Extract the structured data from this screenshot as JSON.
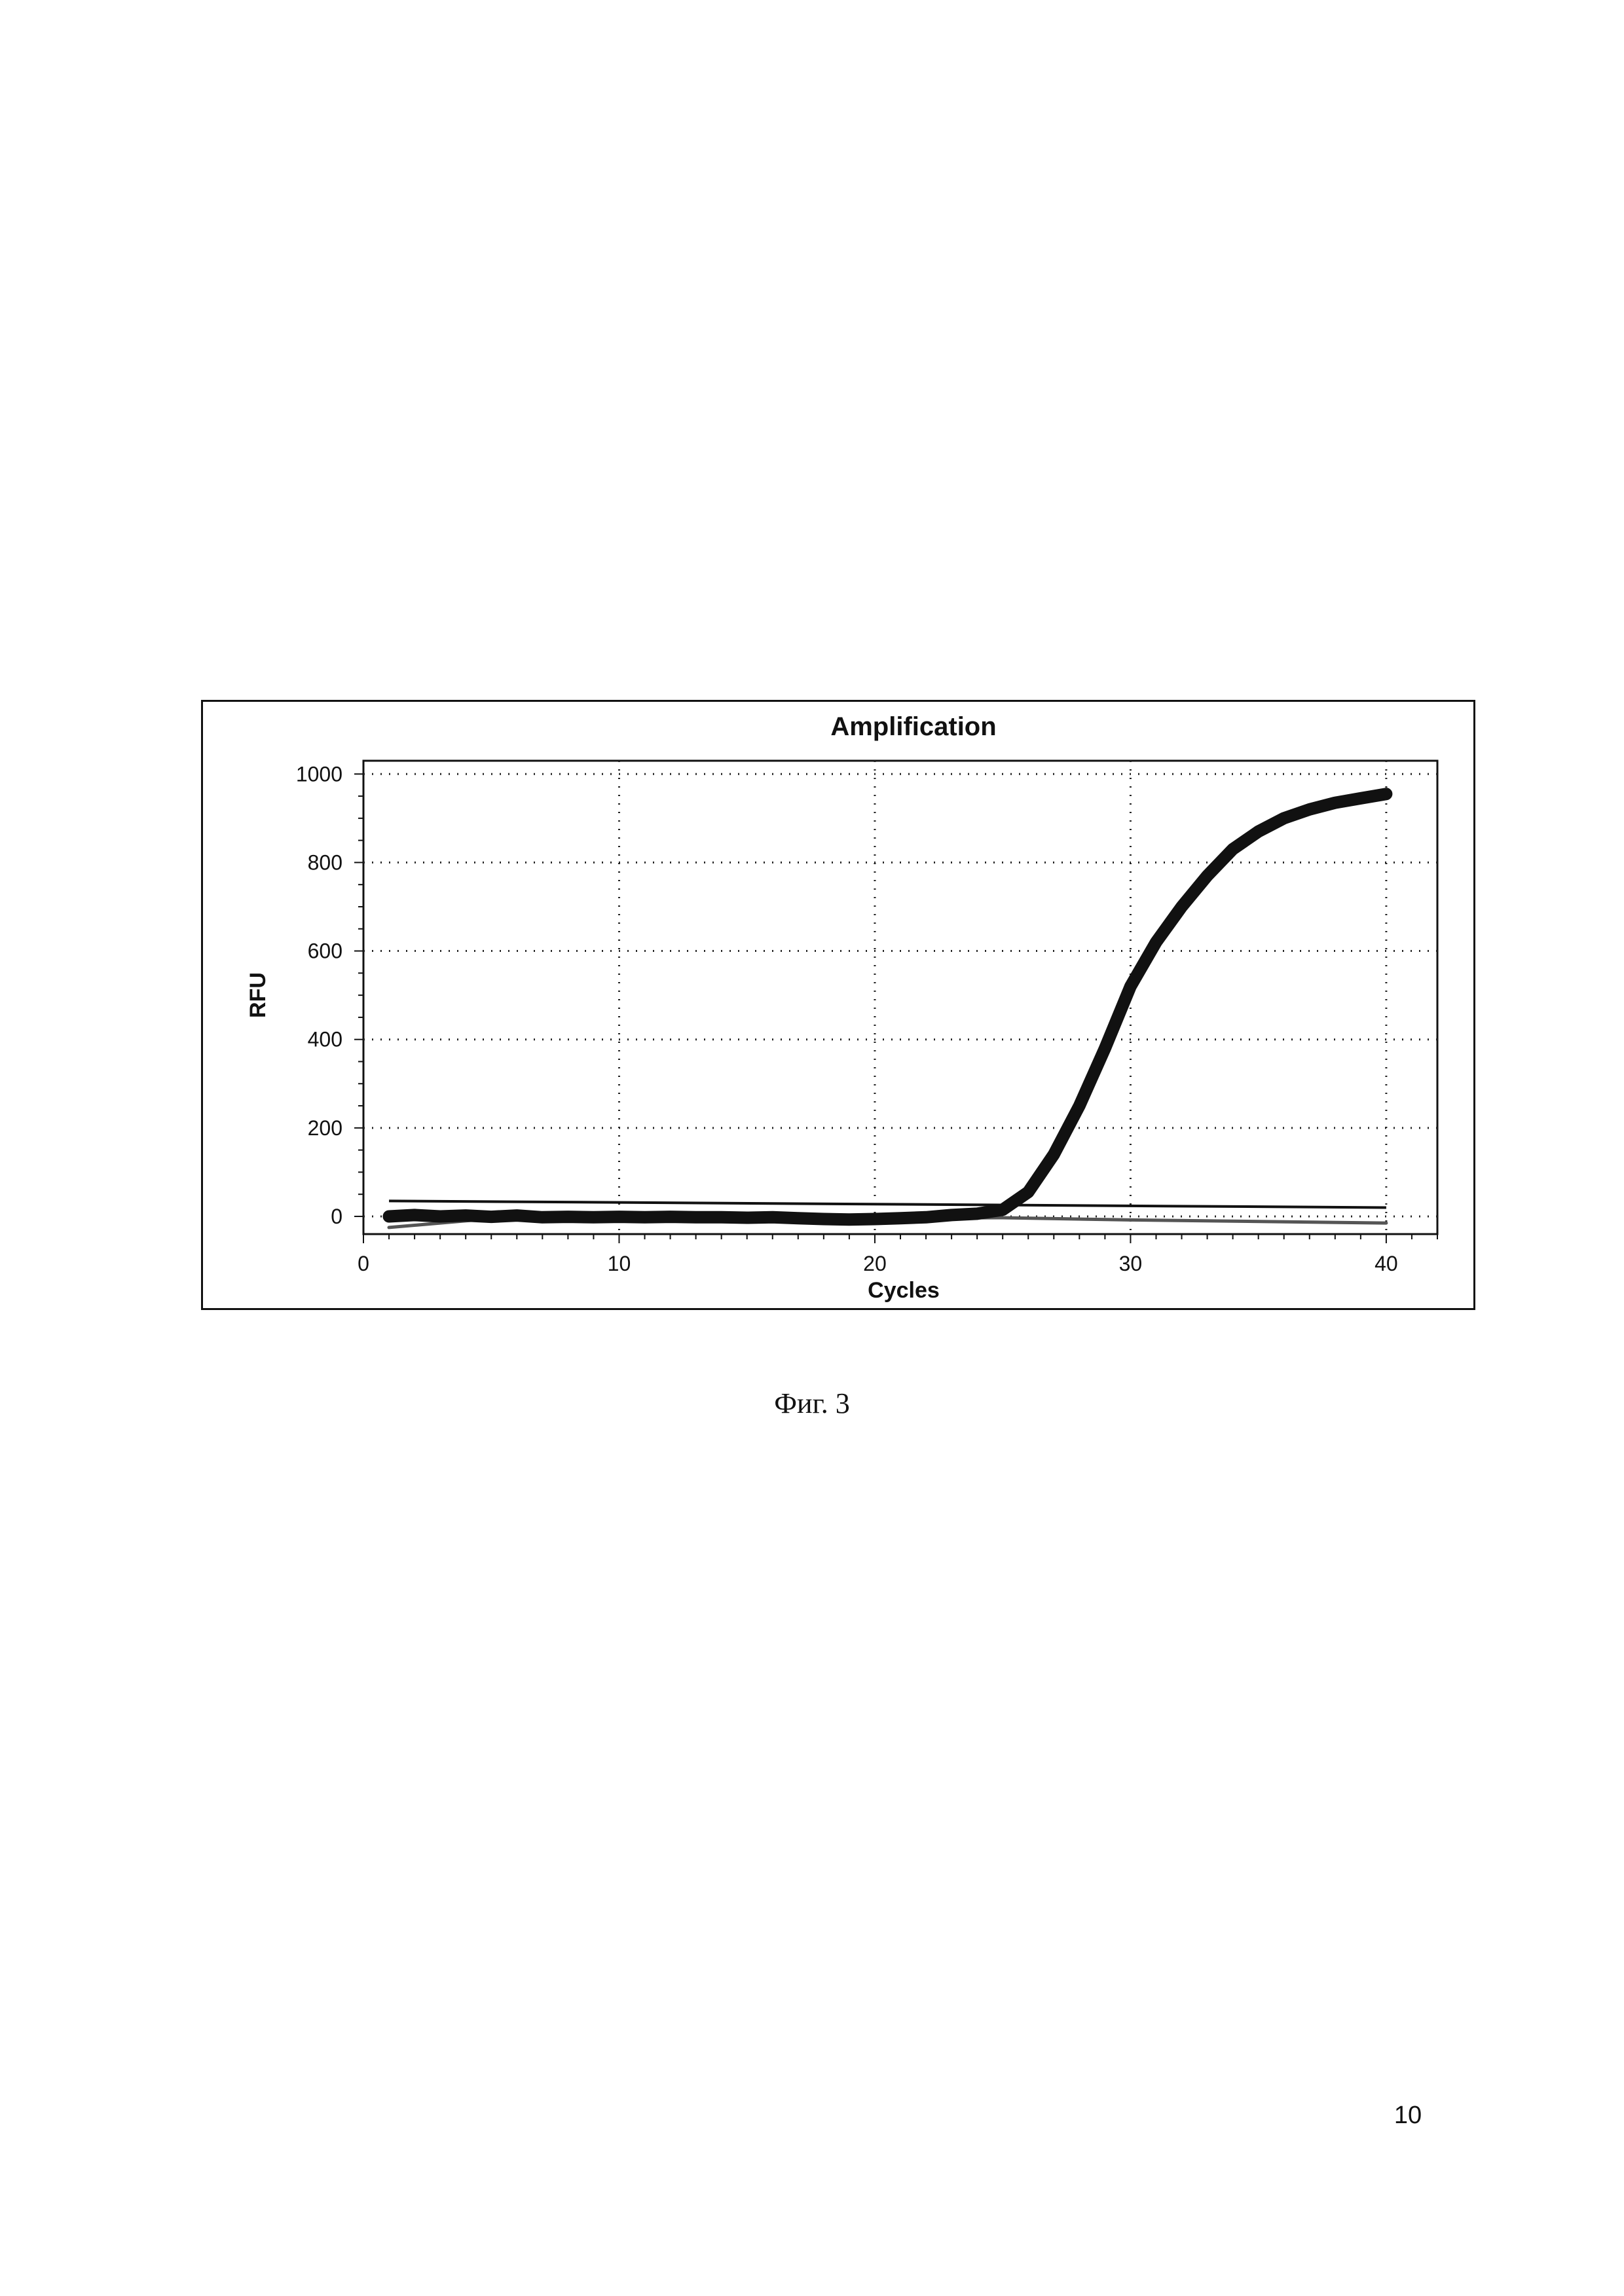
{
  "caption": "Фиг. 3",
  "page_number": "10",
  "chart_data": {
    "type": "line",
    "title": "Amplification",
    "xlabel": "Cycles",
    "ylabel": "RFU",
    "xlim": [
      0,
      42
    ],
    "ylim": [
      -40,
      1030
    ],
    "xticks": [
      0,
      10,
      20,
      30,
      40
    ],
    "yticks": [
      0,
      200,
      400,
      600,
      800,
      1000
    ],
    "grid": true,
    "threshold": {
      "y_start": 35,
      "y_end": 20
    },
    "series": [
      {
        "color": "#111111",
        "x": [
          1,
          2,
          3,
          4,
          5,
          6,
          7,
          8,
          9,
          10,
          11,
          12,
          13,
          14,
          15,
          16,
          17,
          18,
          19,
          20,
          21,
          22,
          23,
          24,
          25,
          26,
          27,
          28,
          29,
          30,
          31,
          32,
          33,
          34,
          35,
          36,
          37,
          38,
          39,
          40
        ],
        "y": [
          0,
          3,
          0,
          2,
          -1,
          2,
          -2,
          -1,
          -2,
          -1,
          -2,
          -1,
          -2,
          -2,
          -3,
          -2,
          -4,
          -6,
          -7,
          -6,
          -4,
          -2,
          3,
          6,
          15,
          55,
          140,
          250,
          380,
          520,
          620,
          700,
          770,
          830,
          870,
          900,
          920,
          935,
          945,
          955
        ]
      },
      {
        "color": "#555555",
        "x": [
          1,
          5,
          10,
          20,
          25,
          30,
          40
        ],
        "y": [
          -25,
          -5,
          -2,
          -4,
          -3,
          -8,
          -15
        ]
      }
    ]
  }
}
